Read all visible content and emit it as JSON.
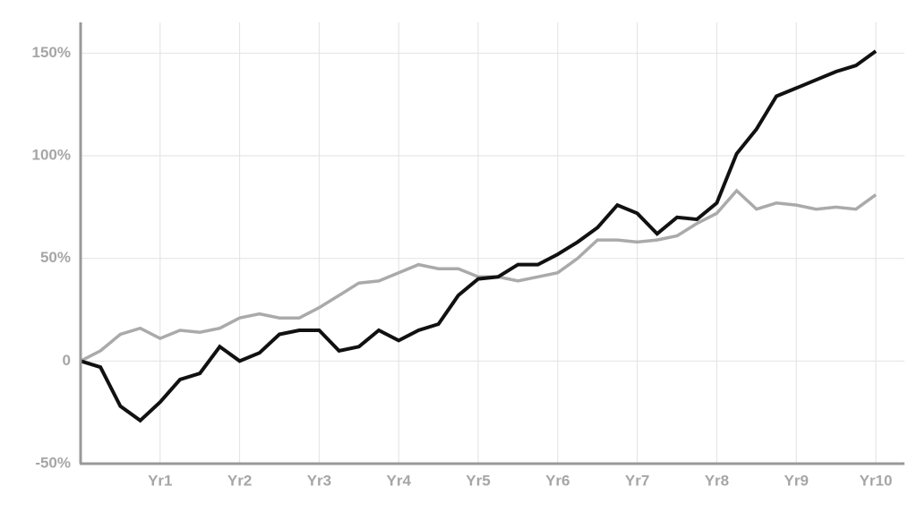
{
  "chart_data": {
    "type": "line",
    "x": [
      0,
      0.25,
      0.5,
      0.75,
      1,
      1.25,
      1.5,
      1.75,
      2,
      2.25,
      2.5,
      2.75,
      3,
      3.25,
      3.5,
      3.75,
      4,
      4.25,
      4.5,
      4.75,
      5,
      5.25,
      5.5,
      5.75,
      6,
      6.25,
      6.5,
      6.75,
      7,
      7.25,
      7.5,
      7.75,
      8,
      8.25,
      8.5,
      8.75,
      9,
      9.25,
      9.5,
      9.75,
      10
    ],
    "series": [
      {
        "color": "#aaaaaa",
        "values": [
          0,
          5,
          13,
          16,
          11,
          15,
          14,
          16,
          21,
          23,
          21,
          21,
          26,
          32,
          38,
          39,
          43,
          47,
          45,
          45,
          41,
          41,
          39,
          41,
          43,
          50,
          59,
          59,
          58,
          59,
          61,
          67,
          72,
          83,
          74,
          77,
          76,
          74,
          75,
          74,
          81
        ]
      },
      {
        "color": "#111111",
        "values": [
          0,
          -3,
          -22,
          -29,
          -20,
          -9,
          -6,
          7,
          0,
          4,
          13,
          15,
          15,
          5,
          7,
          15,
          10,
          15,
          18,
          32,
          40,
          41,
          47,
          47,
          52,
          58,
          65,
          76,
          72,
          62,
          70,
          69,
          77,
          101,
          113,
          129,
          133,
          137,
          141,
          144,
          151
        ]
      }
    ],
    "xlim": [
      0,
      10
    ],
    "xticks": [
      {
        "value": 1,
        "label": "Yr1"
      },
      {
        "value": 2,
        "label": "Yr2"
      },
      {
        "value": 3,
        "label": "Yr3"
      },
      {
        "value": 4,
        "label": "Yr4"
      },
      {
        "value": 5,
        "label": "Yr5"
      },
      {
        "value": 6,
        "label": "Yr6"
      },
      {
        "value": 7,
        "label": "Yr7"
      },
      {
        "value": 8,
        "label": "Yr8"
      },
      {
        "value": 9,
        "label": "Yr9"
      },
      {
        "value": 10,
        "label": "Yr10"
      }
    ],
    "ylim": [
      -50,
      165
    ],
    "yticks": [
      {
        "value": -50,
        "label": "-50%"
      },
      0,
      {
        "value": 50,
        "label": "50%"
      },
      {
        "value": 100,
        "label": "100%"
      },
      {
        "value": 150,
        "label": "150%"
      }
    ],
    "grid": true
  }
}
